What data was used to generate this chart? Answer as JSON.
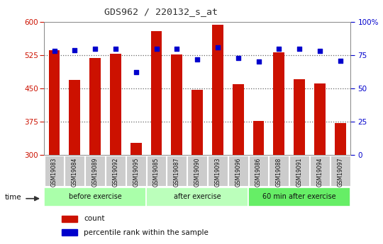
{
  "title": "GDS962 / 220132_s_at",
  "categories": [
    "GSM19083",
    "GSM19084",
    "GSM19089",
    "GSM19092",
    "GSM19095",
    "GSM19085",
    "GSM19087",
    "GSM19090",
    "GSM19093",
    "GSM19096",
    "GSM19086",
    "GSM19088",
    "GSM19091",
    "GSM19094",
    "GSM19097"
  ],
  "bar_values": [
    537,
    470,
    519,
    528,
    328,
    580,
    527,
    447,
    594,
    459,
    376,
    532,
    471,
    461,
    372
  ],
  "dot_values": [
    78,
    79,
    80,
    80,
    62,
    80,
    80,
    72,
    81,
    73,
    70,
    80,
    80,
    78,
    71
  ],
  "bar_color": "#cc1100",
  "dot_color": "#0000cc",
  "ylim_left": [
    300,
    600
  ],
  "ylim_right": [
    0,
    100
  ],
  "yticks_left": [
    300,
    375,
    450,
    525,
    600
  ],
  "yticks_right": [
    0,
    25,
    50,
    75,
    100
  ],
  "groups": [
    {
      "label": "before exercise",
      "start": 0,
      "end": 5,
      "color": "#aaffaa"
    },
    {
      "label": "after exercise",
      "start": 5,
      "end": 10,
      "color": "#bbffbb"
    },
    {
      "label": "60 min after exercise",
      "start": 10,
      "end": 15,
      "color": "#66ee66"
    }
  ],
  "legend_count_label": "count",
  "legend_pct_label": "percentile rank within the sample",
  "bg_color": "#ffffff",
  "plot_bg_color": "#ffffff",
  "tick_label_bg": "#cccccc",
  "time_label": "time"
}
